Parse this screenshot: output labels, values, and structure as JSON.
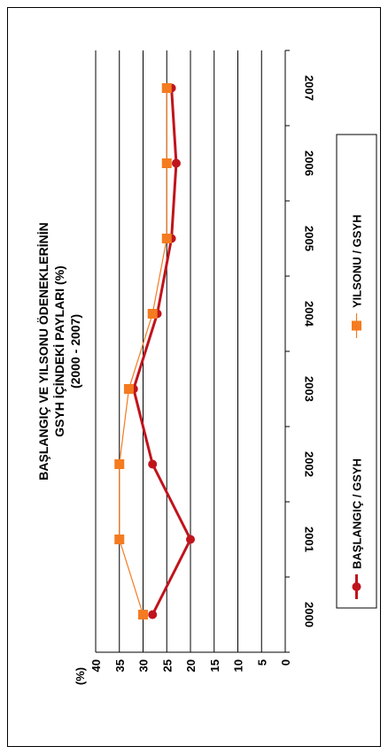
{
  "chart_data": {
    "type": "line",
    "title": "BAŞLANGIÇ VE YILSONU ÖDENEKLERİNİN",
    "subtitle": "GSYH İÇİNDEKİ PAYLARI (%)",
    "period": "(2000 - 2007)",
    "ylabel": "(%)",
    "ylim": [
      0,
      40
    ],
    "y_ticks": [
      "0",
      "5",
      "10",
      "15",
      "20",
      "25",
      "30",
      "35",
      "40"
    ],
    "categories": [
      "2000",
      "2001",
      "2002",
      "2003",
      "2004",
      "2005",
      "2006",
      "2007"
    ],
    "grid": true,
    "legend_position": "right",
    "series": [
      {
        "name": "BAŞLANGIÇ / GSYH",
        "color": "#C0141C",
        "marker": "circle",
        "values": [
          28,
          20,
          28,
          32,
          27,
          24,
          23,
          24
        ]
      },
      {
        "name": "YILSONU / GSYH",
        "color": "#F47B20",
        "marker": "square",
        "values": [
          30,
          35,
          35,
          33,
          28,
          25,
          25,
          25
        ]
      }
    ]
  }
}
